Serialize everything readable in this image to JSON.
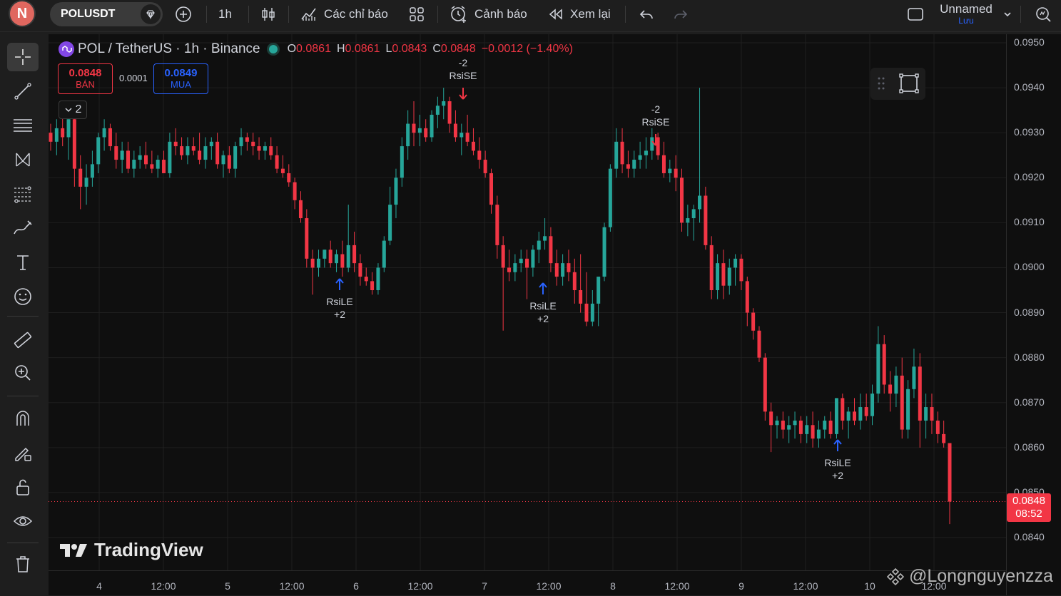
{
  "topbar": {
    "avatar_letter": "N",
    "symbol": "POLUSDT",
    "interval": "1h",
    "indicators_label": "Các chỉ báo",
    "alerts_label": "Cảnh báo",
    "replay_label": "Xem lại",
    "layout_name": "Unnamed",
    "save_label": "Lưu"
  },
  "legend": {
    "title": "POL / TetherUS · 1h · Binance",
    "o_label": "O",
    "o": "0.0861",
    "h_label": "H",
    "h": "0.0861",
    "l_label": "L",
    "l": "0.0843",
    "c_label": "C",
    "c": "0.0848",
    "change": "−0.0012 (−1.40%)",
    "sell_price": "0.0848",
    "sell_label": "BÁN",
    "spread": "0.0001",
    "buy_price": "0.0849",
    "buy_label": "MUA",
    "collapse_count": "2"
  },
  "price_axis": {
    "labels": [
      "0.0950",
      "0.0940",
      "0.0930",
      "0.0920",
      "0.0910",
      "0.0900",
      "0.0890",
      "0.0880",
      "0.0870",
      "0.0860",
      "0.0850",
      "0.0840"
    ],
    "last_price": "0.0848",
    "countdown": "08:52"
  },
  "time_axis": {
    "labels": [
      "4",
      "12:00",
      "5",
      "12:00",
      "6",
      "12:00",
      "7",
      "12:00",
      "8",
      "12:00",
      "9",
      "12:00",
      "10",
      "12:00"
    ]
  },
  "signals": [
    {
      "label": "RsiLE",
      "qty": "+2",
      "type": "long"
    },
    {
      "label": "RsiLE",
      "qty": "+2",
      "type": "long"
    },
    {
      "label": "RsiLE",
      "qty": "+2",
      "type": "long"
    },
    {
      "label": "RsiSE",
      "qty": "-2",
      "type": "short"
    },
    {
      "label": "RsiSE",
      "qty": "-2",
      "type": "short"
    }
  ],
  "branding": {
    "logo_text": "TradingView",
    "watermark": "@Longnguyenzza"
  },
  "colors": {
    "up": "#26a69a",
    "down": "#f23645",
    "bg": "#0f0f0f",
    "grid": "#1f1f1f",
    "long_arrow": "#2962ff"
  },
  "chart_data": {
    "type": "candlestick",
    "price_min": 0.084,
    "price_max": 0.095,
    "candles": [
      [
        0.093,
        0.0932,
        0.0926,
        0.0928
      ],
      [
        0.0928,
        0.0933,
        0.0925,
        0.0931
      ],
      [
        0.0931,
        0.0935,
        0.0927,
        0.0929
      ],
      [
        0.0929,
        0.0933,
        0.0924,
        0.0933
      ],
      [
        0.0933,
        0.0934,
        0.0918,
        0.0922
      ],
      [
        0.0922,
        0.0925,
        0.0913,
        0.0918
      ],
      [
        0.0918,
        0.0923,
        0.0914,
        0.092
      ],
      [
        0.092,
        0.0926,
        0.0918,
        0.0923
      ],
      [
        0.0923,
        0.093,
        0.0921,
        0.0929
      ],
      [
        0.0929,
        0.0933,
        0.0926,
        0.0931
      ],
      [
        0.0931,
        0.0932,
        0.0926,
        0.0927
      ],
      [
        0.0927,
        0.093,
        0.0922,
        0.0924
      ],
      [
        0.0924,
        0.0928,
        0.0921,
        0.0926
      ],
      [
        0.0926,
        0.0928,
        0.0921,
        0.0922
      ],
      [
        0.0922,
        0.0926,
        0.092,
        0.0924
      ],
      [
        0.0924,
        0.0927,
        0.0922,
        0.0925
      ],
      [
        0.0925,
        0.0928,
        0.0922,
        0.0923
      ],
      [
        0.0923,
        0.0926,
        0.0921,
        0.0922
      ],
      [
        0.0922,
        0.0925,
        0.092,
        0.0924
      ],
      [
        0.0924,
        0.0926,
        0.0921,
        0.0921
      ],
      [
        0.0921,
        0.093,
        0.092,
        0.0928
      ],
      [
        0.0928,
        0.0931,
        0.0925,
        0.0927
      ],
      [
        0.0927,
        0.0929,
        0.0924,
        0.0925
      ],
      [
        0.0925,
        0.0929,
        0.0923,
        0.0927
      ],
      [
        0.0927,
        0.0929,
        0.0925,
        0.0926
      ],
      [
        0.0926,
        0.093,
        0.0923,
        0.0924
      ],
      [
        0.0924,
        0.0929,
        0.0922,
        0.0927
      ],
      [
        0.0927,
        0.0929,
        0.0924,
        0.0928
      ],
      [
        0.0928,
        0.093,
        0.0922,
        0.0923
      ],
      [
        0.0923,
        0.0926,
        0.092,
        0.0925
      ],
      [
        0.0925,
        0.0927,
        0.0921,
        0.0922
      ],
      [
        0.0922,
        0.0928,
        0.092,
        0.0927
      ],
      [
        0.0927,
        0.0931,
        0.0925,
        0.0929
      ],
      [
        0.0929,
        0.093,
        0.0926,
        0.0928
      ],
      [
        0.0928,
        0.093,
        0.0925,
        0.0927
      ],
      [
        0.0927,
        0.0929,
        0.0924,
        0.0926
      ],
      [
        0.0926,
        0.0928,
        0.0924,
        0.0927
      ],
      [
        0.0927,
        0.0929,
        0.0924,
        0.0925
      ],
      [
        0.0925,
        0.0927,
        0.0921,
        0.0922
      ],
      [
        0.0922,
        0.0925,
        0.092,
        0.0921
      ],
      [
        0.0921,
        0.0923,
        0.0918,
        0.0919
      ],
      [
        0.0919,
        0.092,
        0.0913,
        0.0915
      ],
      [
        0.0915,
        0.0917,
        0.091,
        0.0911
      ],
      [
        0.0911,
        0.0913,
        0.09,
        0.0902
      ],
      [
        0.0902,
        0.0904,
        0.0894,
        0.09
      ],
      [
        0.09,
        0.0904,
        0.0898,
        0.0902
      ],
      [
        0.0902,
        0.0904,
        0.09,
        0.0904
      ],
      [
        0.0904,
        0.0906,
        0.09,
        0.0901
      ],
      [
        0.0901,
        0.0904,
        0.0899,
        0.0903
      ],
      [
        0.0903,
        0.0906,
        0.0898,
        0.09
      ],
      [
        0.09,
        0.0914,
        0.0899,
        0.0905
      ],
      [
        0.0905,
        0.0908,
        0.0899,
        0.0901
      ],
      [
        0.0901,
        0.0903,
        0.0896,
        0.0898
      ],
      [
        0.0898,
        0.09,
        0.0896,
        0.0897
      ],
      [
        0.0897,
        0.0899,
        0.0894,
        0.0895
      ],
      [
        0.0895,
        0.0901,
        0.0894,
        0.09
      ],
      [
        0.09,
        0.0907,
        0.0899,
        0.0906
      ],
      [
        0.0906,
        0.0918,
        0.0905,
        0.0914
      ],
      [
        0.0914,
        0.0922,
        0.0911,
        0.092
      ],
      [
        0.092,
        0.0929,
        0.0918,
        0.0927
      ],
      [
        0.0927,
        0.0935,
        0.0924,
        0.0932
      ],
      [
        0.0932,
        0.0937,
        0.0927,
        0.093
      ],
      [
        0.093,
        0.0934,
        0.0927,
        0.0931
      ],
      [
        0.0931,
        0.0933,
        0.0928,
        0.0929
      ],
      [
        0.0929,
        0.0935,
        0.0928,
        0.0934
      ],
      [
        0.0934,
        0.0938,
        0.0931,
        0.0936
      ],
      [
        0.0936,
        0.094,
        0.0933,
        0.0937
      ],
      [
        0.0937,
        0.0938,
        0.093,
        0.0932
      ],
      [
        0.0932,
        0.0935,
        0.0928,
        0.0929
      ],
      [
        0.0929,
        0.0932,
        0.0925,
        0.093
      ],
      [
        0.093,
        0.0934,
        0.0927,
        0.0928
      ],
      [
        0.0928,
        0.0931,
        0.0925,
        0.0926
      ],
      [
        0.0926,
        0.0929,
        0.0922,
        0.0924
      ],
      [
        0.0924,
        0.0926,
        0.092,
        0.0921
      ],
      [
        0.0921,
        0.0922,
        0.0912,
        0.0914
      ],
      [
        0.0914,
        0.0916,
        0.0902,
        0.0905
      ],
      [
        0.0905,
        0.0907,
        0.0886,
        0.09
      ],
      [
        0.09,
        0.0904,
        0.0897,
        0.0899
      ],
      [
        0.0899,
        0.0903,
        0.0897,
        0.0901
      ],
      [
        0.0901,
        0.0904,
        0.0899,
        0.0902
      ],
      [
        0.0902,
        0.0904,
        0.0893,
        0.09
      ],
      [
        0.09,
        0.0905,
        0.0898,
        0.0904
      ],
      [
        0.0904,
        0.0908,
        0.0901,
        0.0906
      ],
      [
        0.0906,
        0.0911,
        0.0904,
        0.0907
      ],
      [
        0.0907,
        0.0909,
        0.0899,
        0.0901
      ],
      [
        0.0901,
        0.0904,
        0.0896,
        0.0898
      ],
      [
        0.0898,
        0.0903,
        0.0896,
        0.0901
      ],
      [
        0.0901,
        0.0904,
        0.0897,
        0.0899
      ],
      [
        0.0899,
        0.0902,
        0.0892,
        0.0895
      ],
      [
        0.0895,
        0.0903,
        0.089,
        0.0892
      ],
      [
        0.0892,
        0.0899,
        0.0887,
        0.0888
      ],
      [
        0.0888,
        0.0895,
        0.0887,
        0.0892
      ],
      [
        0.0892,
        0.0898,
        0.0887,
        0.0898
      ],
      [
        0.0898,
        0.091,
        0.0897,
        0.0909
      ],
      [
        0.0909,
        0.0923,
        0.0908,
        0.0922
      ],
      [
        0.0922,
        0.0931,
        0.092,
        0.0928
      ],
      [
        0.0928,
        0.0931,
        0.0921,
        0.0923
      ],
      [
        0.0923,
        0.0926,
        0.092,
        0.0922
      ],
      [
        0.0922,
        0.0926,
        0.092,
        0.0924
      ],
      [
        0.0924,
        0.0928,
        0.0922,
        0.0925
      ],
      [
        0.0925,
        0.0929,
        0.0922,
        0.0926
      ],
      [
        0.0926,
        0.0931,
        0.0924,
        0.0929
      ],
      [
        0.0929,
        0.093,
        0.0924,
        0.0925
      ],
      [
        0.0925,
        0.0928,
        0.092,
        0.0921
      ],
      [
        0.0921,
        0.0924,
        0.0919,
        0.0922
      ],
      [
        0.0922,
        0.0925,
        0.0917,
        0.092
      ],
      [
        0.092,
        0.0922,
        0.0908,
        0.091
      ],
      [
        0.091,
        0.0914,
        0.0907,
        0.0911
      ],
      [
        0.0911,
        0.0914,
        0.0906,
        0.0913
      ],
      [
        0.0913,
        0.094,
        0.091,
        0.0916
      ],
      [
        0.0916,
        0.0918,
        0.0904,
        0.0905
      ],
      [
        0.0905,
        0.0907,
        0.0893,
        0.0895
      ],
      [
        0.0895,
        0.0903,
        0.0893,
        0.0901
      ],
      [
        0.0901,
        0.0904,
        0.0893,
        0.0896
      ],
      [
        0.0896,
        0.0902,
        0.0894,
        0.09
      ],
      [
        0.09,
        0.0903,
        0.0896,
        0.0902
      ],
      [
        0.0902,
        0.0903,
        0.0895,
        0.0897
      ],
      [
        0.0897,
        0.0898,
        0.0887,
        0.089
      ],
      [
        0.089,
        0.0891,
        0.0884,
        0.0886
      ],
      [
        0.0886,
        0.0887,
        0.0879,
        0.088
      ],
      [
        0.088,
        0.0881,
        0.0866,
        0.0868
      ],
      [
        0.0868,
        0.087,
        0.0859,
        0.0865
      ],
      [
        0.0865,
        0.0867,
        0.0862,
        0.0866
      ],
      [
        0.0866,
        0.0868,
        0.0862,
        0.0864
      ],
      [
        0.0864,
        0.0867,
        0.0861,
        0.0865
      ],
      [
        0.0865,
        0.0868,
        0.0862,
        0.0866
      ],
      [
        0.0866,
        0.0867,
        0.0861,
        0.0863
      ],
      [
        0.0863,
        0.0867,
        0.0861,
        0.0865
      ],
      [
        0.0865,
        0.0868,
        0.086,
        0.0862
      ],
      [
        0.0862,
        0.0866,
        0.086,
        0.0864
      ],
      [
        0.0864,
        0.0867,
        0.0862,
        0.0866
      ],
      [
        0.0866,
        0.0868,
        0.0862,
        0.0863
      ],
      [
        0.0863,
        0.0871,
        0.0862,
        0.0871
      ],
      [
        0.0871,
        0.0872,
        0.0864,
        0.0866
      ],
      [
        0.0866,
        0.0869,
        0.0862,
        0.0868
      ],
      [
        0.0868,
        0.0871,
        0.0865,
        0.0866
      ],
      [
        0.0866,
        0.0872,
        0.0864,
        0.0869
      ],
      [
        0.0869,
        0.0872,
        0.0866,
        0.0867
      ],
      [
        0.0867,
        0.0874,
        0.0865,
        0.0872
      ],
      [
        0.0872,
        0.0887,
        0.087,
        0.0883
      ],
      [
        0.0883,
        0.0885,
        0.0872,
        0.0874
      ],
      [
        0.0874,
        0.0877,
        0.0868,
        0.0872
      ],
      [
        0.0872,
        0.0878,
        0.0869,
        0.0876
      ],
      [
        0.0876,
        0.088,
        0.0862,
        0.0864
      ],
      [
        0.0864,
        0.0875,
        0.0862,
        0.0873
      ],
      [
        0.0873,
        0.0882,
        0.0871,
        0.0878
      ],
      [
        0.0878,
        0.0881,
        0.086,
        0.0866
      ],
      [
        0.0866,
        0.0872,
        0.0862,
        0.0869
      ],
      [
        0.0869,
        0.0872,
        0.0863,
        0.0866
      ],
      [
        0.0866,
        0.0868,
        0.0861,
        0.0863
      ],
      [
        0.0863,
        0.0866,
        0.086,
        0.0861
      ],
      [
        0.0861,
        0.0861,
        0.0843,
        0.0848
      ]
    ]
  }
}
